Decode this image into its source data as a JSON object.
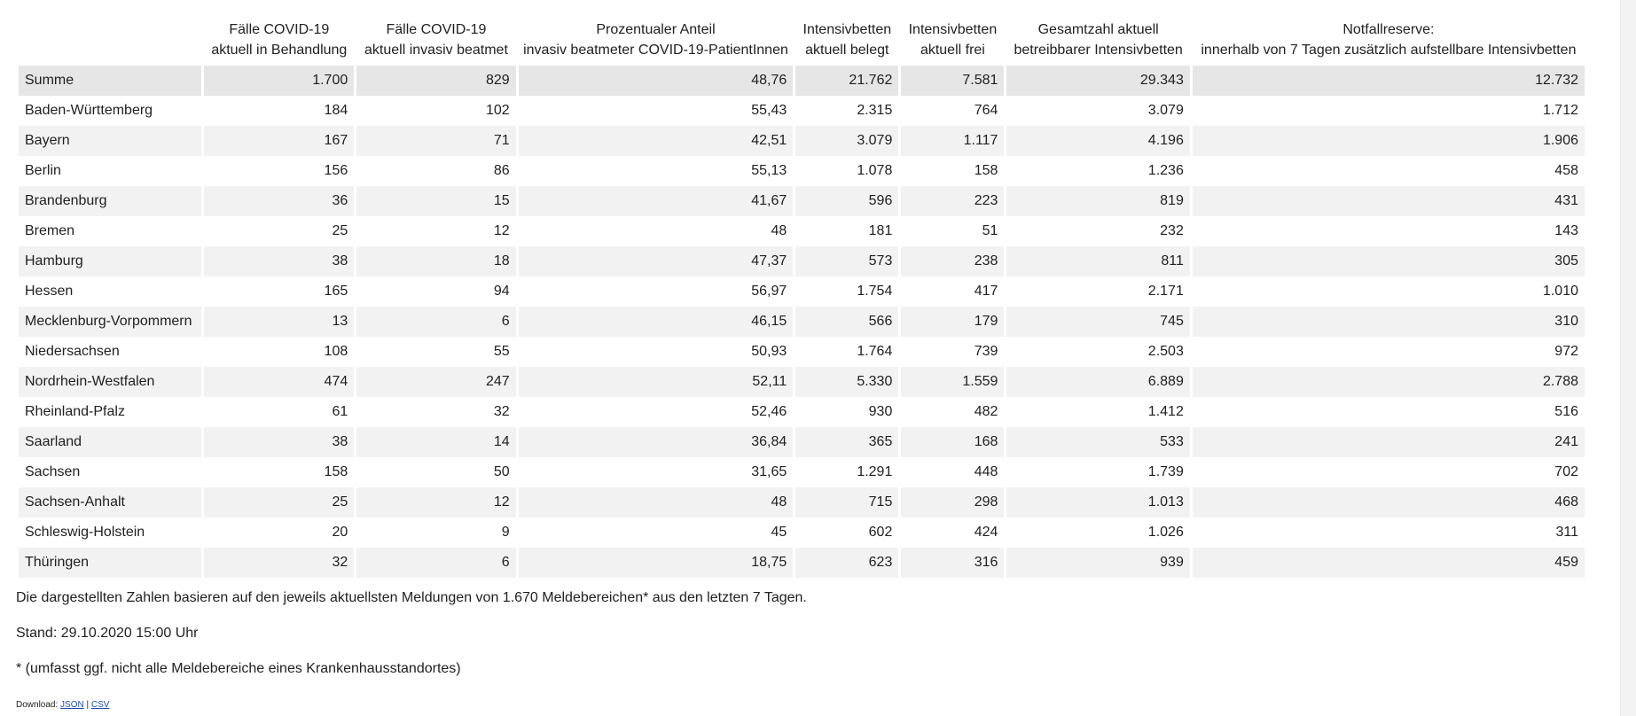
{
  "table": {
    "headers": [
      [
        "",
        ""
      ],
      [
        "Fälle COVID-19",
        "aktuell in Behandlung"
      ],
      [
        "Fälle COVID-19",
        "aktuell invasiv beatmet"
      ],
      [
        "Prozentualer Anteil",
        "invasiv beatmeter COVID-19-PatientInnen"
      ],
      [
        "Intensivbetten",
        "aktuell belegt"
      ],
      [
        "Intensivbetten",
        "aktuell frei"
      ],
      [
        "Gesamtzahl aktuell",
        "betreibbarer Intensivbetten"
      ],
      [
        "Notfallreserve:",
        "innerhalb von 7 Tagen zusätzlich aufstellbare Intensivbetten"
      ]
    ],
    "rows": [
      [
        "Summe",
        "1.700",
        "829",
        "48,76",
        "21.762",
        "7.581",
        "29.343",
        "12.732"
      ],
      [
        "Baden-Württemberg",
        "184",
        "102",
        "55,43",
        "2.315",
        "764",
        "3.079",
        "1.712"
      ],
      [
        "Bayern",
        "167",
        "71",
        "42,51",
        "3.079",
        "1.117",
        "4.196",
        "1.906"
      ],
      [
        "Berlin",
        "156",
        "86",
        "55,13",
        "1.078",
        "158",
        "1.236",
        "458"
      ],
      [
        "Brandenburg",
        "36",
        "15",
        "41,67",
        "596",
        "223",
        "819",
        "431"
      ],
      [
        "Bremen",
        "25",
        "12",
        "48",
        "181",
        "51",
        "232",
        "143"
      ],
      [
        "Hamburg",
        "38",
        "18",
        "47,37",
        "573",
        "238",
        "811",
        "305"
      ],
      [
        "Hessen",
        "165",
        "94",
        "56,97",
        "1.754",
        "417",
        "2.171",
        "1.010"
      ],
      [
        "Mecklenburg-Vorpommern",
        "13",
        "6",
        "46,15",
        "566",
        "179",
        "745",
        "310"
      ],
      [
        "Niedersachsen",
        "108",
        "55",
        "50,93",
        "1.764",
        "739",
        "2.503",
        "972"
      ],
      [
        "Nordrhein-Westfalen",
        "474",
        "247",
        "52,11",
        "5.330",
        "1.559",
        "6.889",
        "2.788"
      ],
      [
        "Rheinland-Pfalz",
        "61",
        "32",
        "52,46",
        "930",
        "482",
        "1.412",
        "516"
      ],
      [
        "Saarland",
        "38",
        "14",
        "36,84",
        "365",
        "168",
        "533",
        "241"
      ],
      [
        "Sachsen",
        "158",
        "50",
        "31,65",
        "1.291",
        "448",
        "1.739",
        "702"
      ],
      [
        "Sachsen-Anhalt",
        "25",
        "12",
        "48",
        "715",
        "298",
        "1.013",
        "468"
      ],
      [
        "Schleswig-Holstein",
        "20",
        "9",
        "45",
        "602",
        "424",
        "1.026",
        "311"
      ],
      [
        "Thüringen",
        "32",
        "6",
        "18,75",
        "623",
        "316",
        "939",
        "459"
      ]
    ]
  },
  "notes": {
    "meldungen": "Die dargestellten Zahlen basieren auf den jeweils aktuellsten Meldungen von 1.670 Meldebereichen* aus den letzten 7 Tagen.",
    "stand": "Stand: 29.10.2020 15:00 Uhr",
    "footnote": "* (umfasst ggf. nicht alle Meldebereiche eines Krankenhausstandortes)"
  },
  "download": {
    "label": "Download: ",
    "json_link": "JSON",
    "separator": " | ",
    "csv_link": "CSV"
  }
}
